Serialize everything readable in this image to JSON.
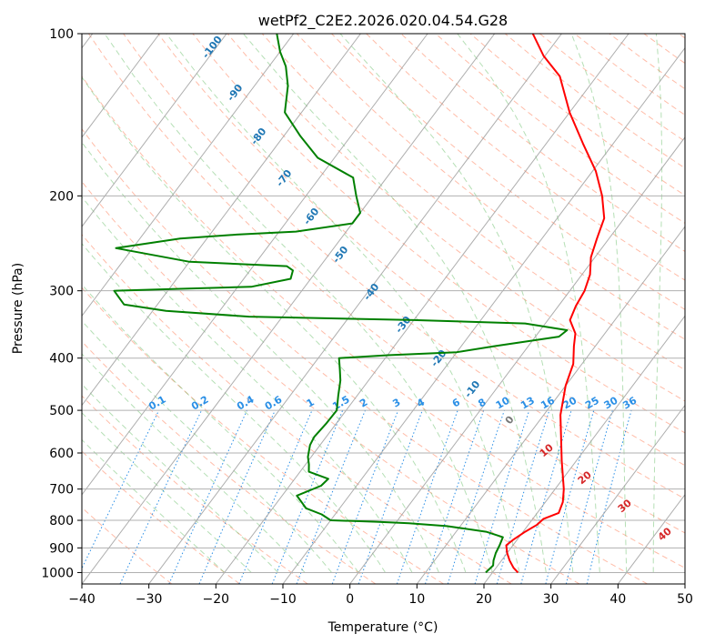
{
  "chart_data": {
    "type": "line",
    "title": "wetPf2_C2E2.2026.020.04.54.G28",
    "xlabel": "Temperature (°C)",
    "ylabel": "Pressure (hPa)",
    "xlim": [
      -40,
      50
    ],
    "ylim": [
      1050,
      100
    ],
    "y_scale": "log",
    "x_ticks": [
      -40,
      -30,
      -20,
      -10,
      0,
      10,
      20,
      30,
      40,
      50
    ],
    "y_ticks": [
      100,
      200,
      300,
      400,
      500,
      600,
      700,
      800,
      900,
      1000
    ],
    "grid": true,
    "skew": "skew-T log-p",
    "colors": {
      "temperature": "#ff0000",
      "dewpoint": "#008000",
      "isotherm": "#999999",
      "dry_adiabat": "#ff6a3d",
      "moist_adiabat": "#5cb85c",
      "mixing_ratio": "#1e88e5",
      "isotherm_label": "#1f77b4",
      "adiabat_label": "#d62728"
    },
    "isotherm_labels": [
      "-100",
      "-90",
      "-80",
      "-70",
      "-60",
      "-50",
      "-40",
      "-30",
      "-20",
      "-10",
      "0"
    ],
    "mixing_ratio_labels": [
      "0.1",
      "0.2",
      "0.4",
      "0.6",
      "1",
      "1.5",
      "2",
      "3",
      "4",
      "6",
      "8",
      "10",
      "13",
      "16",
      "20",
      "25",
      "30",
      "36"
    ],
    "dry_adiabat_labels": [
      "10",
      "20",
      "30",
      "40"
    ],
    "series": [
      {
        "name": "Temperature",
        "points": [
          [
            23.8,
            1000
          ],
          [
            22.6,
            980
          ],
          [
            21.2,
            950
          ],
          [
            20.0,
            920
          ],
          [
            19.0,
            890
          ],
          [
            19.4,
            870
          ],
          [
            20.3,
            840
          ],
          [
            21.3,
            815
          ],
          [
            21.6,
            795
          ],
          [
            23.2,
            775
          ],
          [
            22.6,
            740
          ],
          [
            21.3,
            700
          ],
          [
            17.8,
            620
          ],
          [
            12.5,
            510
          ],
          [
            10.0,
            450
          ],
          [
            8.7,
            410
          ],
          [
            6.8,
            380
          ],
          [
            5.6,
            360
          ],
          [
            3.3,
            340
          ],
          [
            2.6,
            320
          ],
          [
            2.2,
            300
          ],
          [
            1.2,
            280
          ],
          [
            -0.6,
            260
          ],
          [
            -1.8,
            240
          ],
          [
            -3.0,
            220
          ],
          [
            -5.8,
            200
          ],
          [
            -9.5,
            180
          ],
          [
            -14.5,
            160
          ],
          [
            -20.0,
            140
          ],
          [
            -25.5,
            120
          ],
          [
            -30.2,
            110
          ],
          [
            -34.3,
            100
          ]
        ]
      },
      {
        "name": "Dewpoint",
        "points": [
          [
            19.0,
            1000
          ],
          [
            19.3,
            970
          ],
          [
            18.8,
            950
          ],
          [
            18.3,
            920
          ],
          [
            18.0,
            890
          ],
          [
            17.6,
            860
          ],
          [
            14.5,
            840
          ],
          [
            8.0,
            820
          ],
          [
            2.0,
            810
          ],
          [
            -3.0,
            805
          ],
          [
            -10.0,
            800
          ],
          [
            -12.0,
            780
          ],
          [
            -15.0,
            760
          ],
          [
            -17.8,
            720
          ],
          [
            -15.3,
            690
          ],
          [
            -15.0,
            670
          ],
          [
            -18.7,
            650
          ],
          [
            -19.5,
            630
          ],
          [
            -20.5,
            610
          ],
          [
            -21.5,
            580
          ],
          [
            -21.8,
            560
          ],
          [
            -21.5,
            530
          ],
          [
            -21.4,
            500
          ],
          [
            -22.8,
            470
          ],
          [
            -24.2,
            440
          ],
          [
            -25.5,
            420
          ],
          [
            -26.9,
            400
          ],
          [
            -20.0,
            395
          ],
          [
            -10.0,
            390
          ],
          [
            -5.0,
            380
          ],
          [
            3.5,
            365
          ],
          [
            4.0,
            355
          ],
          [
            -3.0,
            345
          ],
          [
            -20.0,
            340
          ],
          [
            -45.0,
            335
          ],
          [
            -58.0,
            327
          ],
          [
            -65.0,
            318
          ],
          [
            -68.0,
            300
          ],
          [
            -60.0,
            298
          ],
          [
            -48.0,
            295
          ],
          [
            -43.0,
            285
          ],
          [
            -43.6,
            275
          ],
          [
            -45.0,
            270
          ],
          [
            -60.0,
            265
          ],
          [
            -72.5,
            250
          ],
          [
            -64.0,
            240
          ],
          [
            -56.0,
            236
          ],
          [
            -47.5,
            233
          ],
          [
            -40.0,
            225
          ],
          [
            -40.0,
            215
          ],
          [
            -42.5,
            200
          ],
          [
            -45.0,
            185
          ],
          [
            -52.5,
            170
          ],
          [
            -57.5,
            155
          ],
          [
            -62.5,
            140
          ],
          [
            -65.0,
            125
          ],
          [
            -67.5,
            115
          ],
          [
            -70.0,
            108
          ],
          [
            -72.5,
            100
          ]
        ]
      }
    ]
  }
}
